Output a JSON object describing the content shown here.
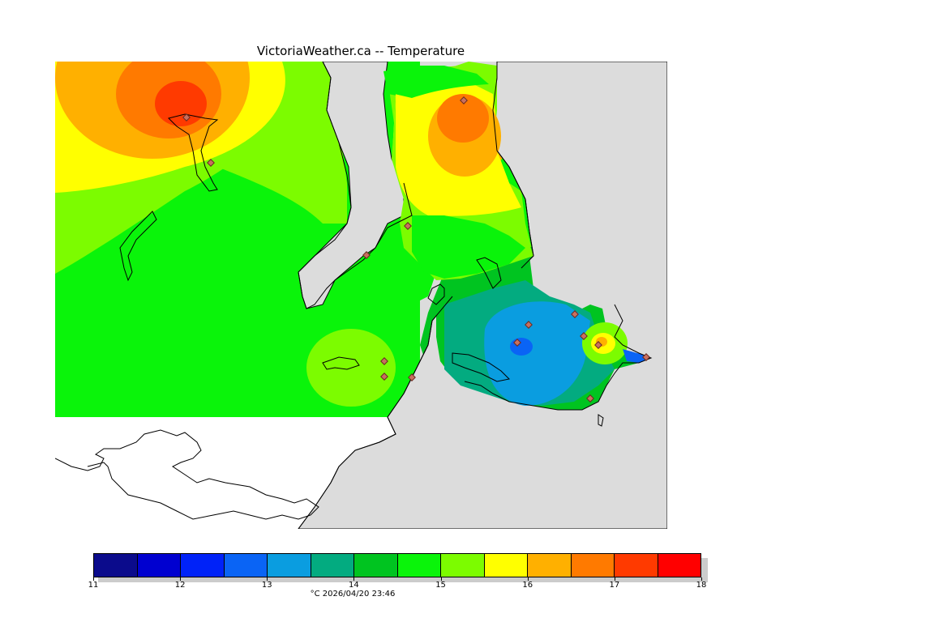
{
  "title": "VictoriaWeather.ca -- Temperature",
  "legend": {
    "ticks": [
      "11",
      "12",
      "13",
      "14",
      "15",
      "16",
      "17",
      "18"
    ],
    "colors": [
      "#0b0b8c",
      "#0000d0",
      "#0022f8",
      "#0a64f5",
      "#0a9de0",
      "#03ab80",
      "#00c420",
      "#0af40a",
      "#7cfc00",
      "#ffff00",
      "#ffb000",
      "#ff7a00",
      "#ff3a00",
      "#ff0000"
    ],
    "caption": "°C  2026/04/20 23:46"
  },
  "map_colors": {
    "background_land": "#dcdcdc",
    "water_unmapped": "#ffffff"
  }
}
